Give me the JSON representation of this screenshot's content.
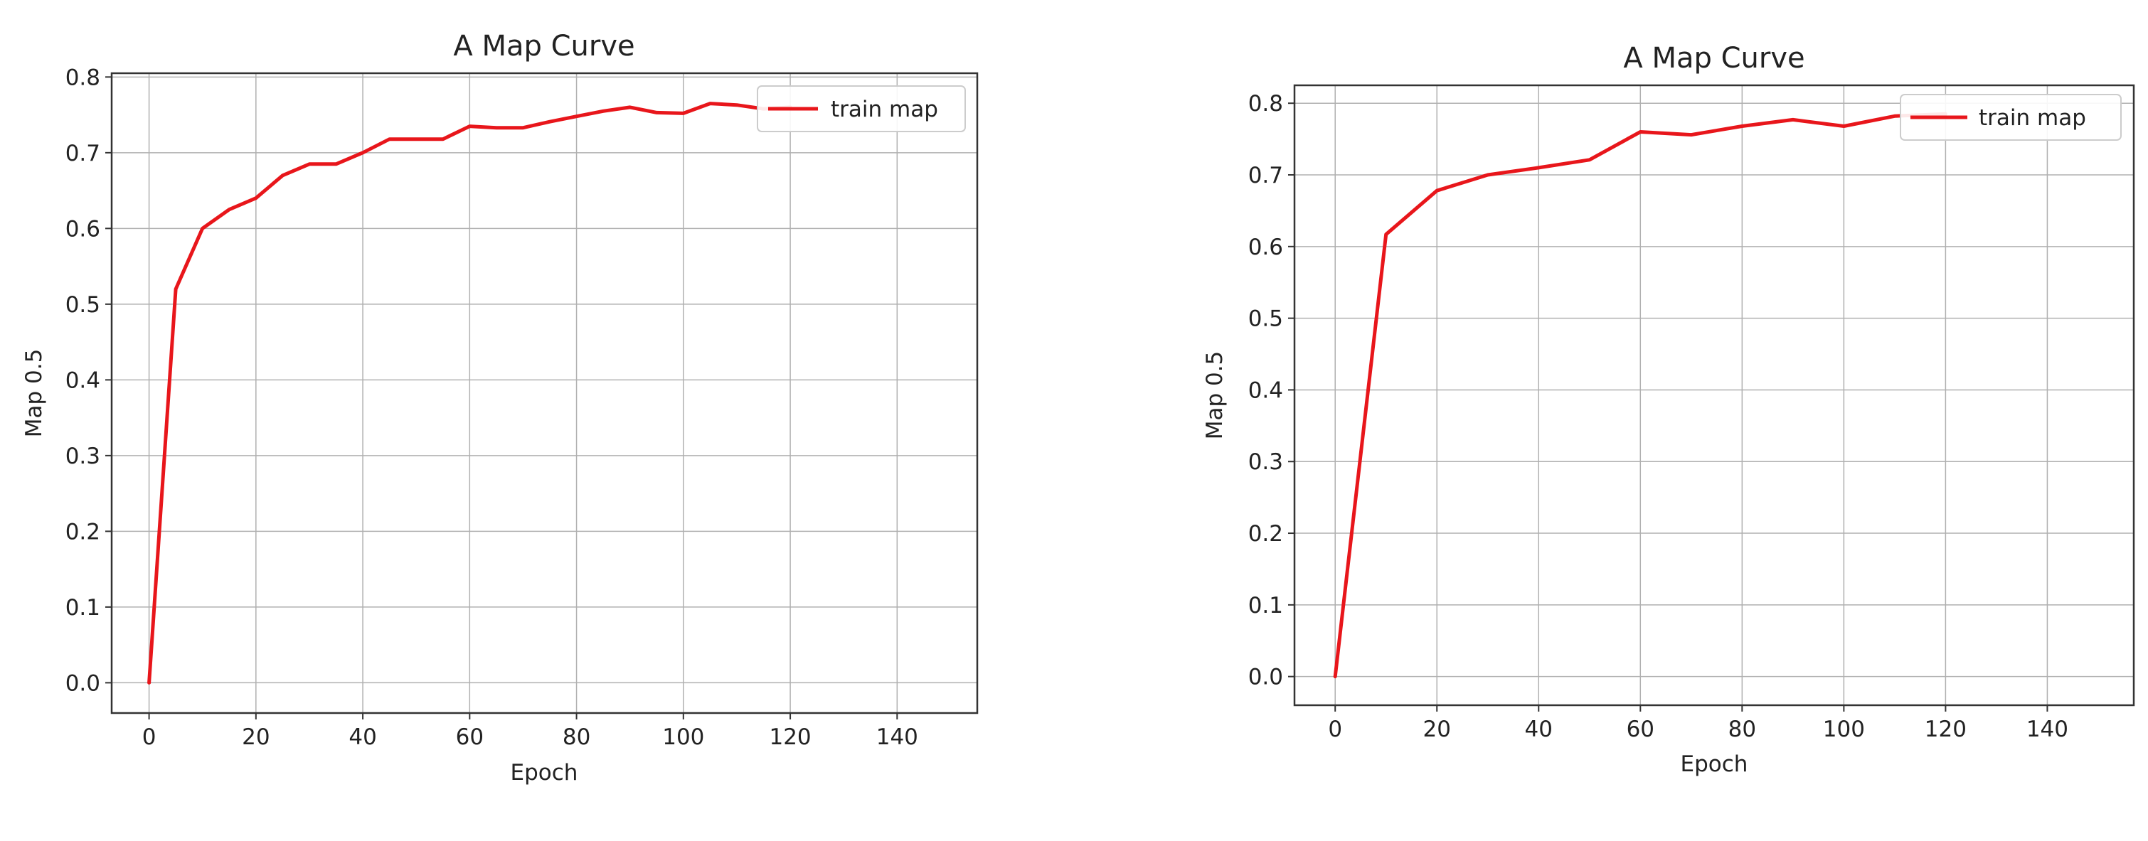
{
  "chart_data": [
    {
      "type": "line",
      "title": "A Map Curve",
      "xlabel": "Epoch",
      "ylabel": "Map 0.5",
      "xlim": [
        -7,
        155
      ],
      "ylim": [
        -0.04,
        0.805
      ],
      "xticks": [
        0,
        20,
        40,
        60,
        80,
        100,
        120,
        140
      ],
      "yticks": [
        0.0,
        0.1,
        0.2,
        0.3,
        0.4,
        0.5,
        0.6,
        0.7,
        0.8
      ],
      "ytick_labels": [
        "0.0",
        "0.1",
        "0.2",
        "0.3",
        "0.4",
        "0.5",
        "0.6",
        "0.7",
        "0.8"
      ],
      "grid": true,
      "legend": "top-right",
      "color": "#e8161b",
      "series": [
        {
          "name": "train map",
          "x": [
            0,
            5,
            10,
            15,
            20,
            25,
            30,
            35,
            40,
            45,
            50,
            55,
            60,
            65,
            70,
            75,
            80,
            85,
            90,
            95,
            100,
            105,
            110,
            115,
            120
          ],
          "y": [
            0.0,
            0.52,
            0.6,
            0.625,
            0.64,
            0.67,
            0.685,
            0.685,
            0.7,
            0.718,
            0.718,
            0.718,
            0.735,
            0.733,
            0.733,
            0.741,
            0.748,
            0.755,
            0.76,
            0.753,
            0.752,
            0.765,
            0.763,
            0.758,
            0.76
          ]
        }
      ]
    },
    {
      "type": "line",
      "title": "A Map Curve",
      "xlabel": "Epoch",
      "ylabel": "Map 0.5",
      "xlim": [
        -8,
        157
      ],
      "ylim": [
        -0.04,
        0.825
      ],
      "xticks": [
        0,
        20,
        40,
        60,
        80,
        100,
        120,
        140
      ],
      "yticks": [
        0.0,
        0.1,
        0.2,
        0.3,
        0.4,
        0.5,
        0.6,
        0.7,
        0.8
      ],
      "ytick_labels": [
        "0.0",
        "0.1",
        "0.2",
        "0.3",
        "0.4",
        "0.5",
        "0.6",
        "0.7",
        "0.8"
      ],
      "grid": true,
      "legend": "top-right",
      "color": "#e8161b",
      "series": [
        {
          "name": "train map",
          "x": [
            0,
            10,
            20,
            30,
            40,
            50,
            60,
            70,
            80,
            90,
            100,
            110,
            120
          ],
          "y": [
            0.0,
            0.617,
            0.678,
            0.7,
            0.71,
            0.721,
            0.76,
            0.756,
            0.768,
            0.777,
            0.768,
            0.782,
            0.785
          ]
        }
      ]
    }
  ]
}
